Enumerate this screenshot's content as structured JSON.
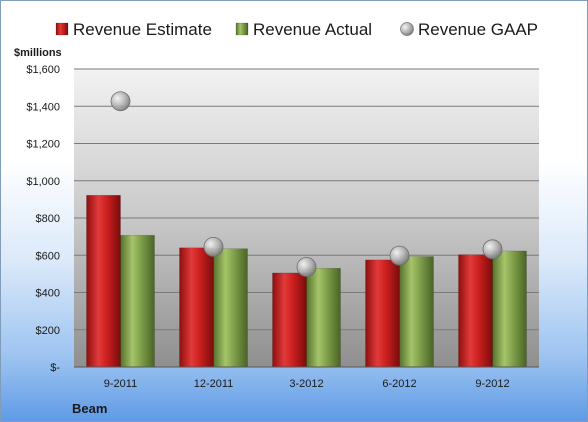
{
  "chart_data": {
    "type": "bar",
    "company": "Beam",
    "unit_label": "$millions",
    "categories": [
      "9-2011",
      "12-2011",
      "3-2012",
      "6-2012",
      "9-2012"
    ],
    "y_ticks": [
      "$-",
      "$200",
      "$400",
      "$600",
      "$800",
      "$1,000",
      "$1,200",
      "$1,400",
      "$1,600"
    ],
    "ylim": [
      0,
      1600
    ],
    "y_tick_step": 200,
    "grid": true,
    "legend_position": "top",
    "series": [
      {
        "name": "Revenue Estimate",
        "kind": "bar",
        "color": "#cc1f1f",
        "values": [
          922,
          640,
          505,
          575,
          603
        ]
      },
      {
        "name": "Revenue Actual",
        "kind": "bar",
        "color": "#7fa04a",
        "values": [
          707,
          635,
          530,
          593,
          623
        ]
      },
      {
        "name": "Revenue GAAP",
        "kind": "marker",
        "color": "#b0b0b0",
        "values": [
          1427,
          645,
          537,
          598,
          632
        ]
      }
    ]
  }
}
